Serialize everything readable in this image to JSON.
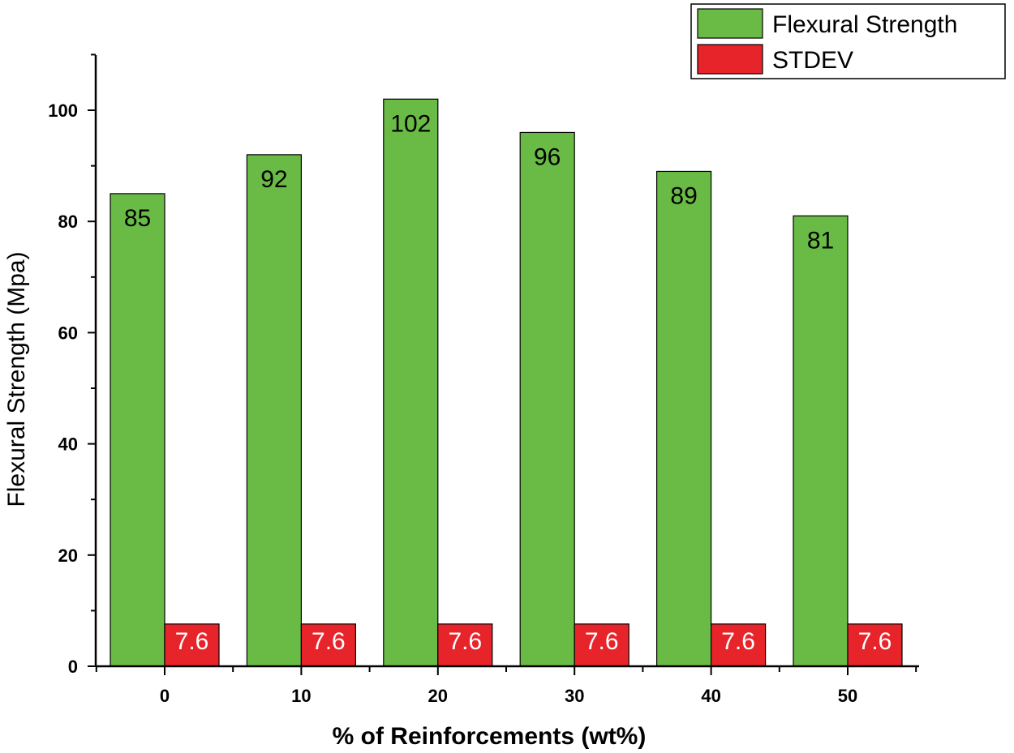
{
  "chart_data": {
    "type": "bar",
    "title": "",
    "xlabel": "% of Reinforcements (wt%)",
    "ylabel": "Flexural Strength (Mpa)",
    "categories": [
      "0",
      "10",
      "20",
      "30",
      "40",
      "50"
    ],
    "series": [
      {
        "name": "Flexural Strength",
        "values": [
          85,
          92,
          102,
          96,
          89,
          81
        ],
        "labels": [
          "85",
          "92",
          "102",
          "96",
          "89",
          "81"
        ],
        "color": "#69bb45"
      },
      {
        "name": "STDEV",
        "values": [
          7.6,
          7.6,
          7.6,
          7.6,
          7.6,
          7.6
        ],
        "labels": [
          "7.6",
          "7.6",
          "7.6",
          "7.6",
          "7.6",
          "7.6"
        ],
        "color": "#e8242b"
      }
    ],
    "ylim": [
      0,
      110
    ],
    "yticks": [
      "0",
      "20",
      "40",
      "60",
      "80",
      "100"
    ],
    "grid": false,
    "legend": "top-right"
  }
}
